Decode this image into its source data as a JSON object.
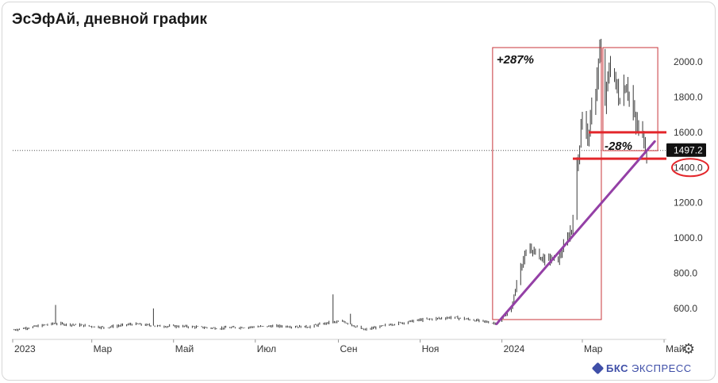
{
  "title": "ЭсЭфАй, дневной график",
  "logo": {
    "brand": "БКС",
    "product": "ЭКСПРЕСС"
  },
  "settings_icon": "gear-icon",
  "chart_data": {
    "type": "candlestick",
    "title": "ЭсЭфАй, дневной график",
    "x_tick_labels": [
      "2023",
      "Мар",
      "Май",
      "Июл",
      "Сен",
      "Ноя",
      "2024",
      "Мар",
      "Май"
    ],
    "y_tick_labels": [
      "600.0",
      "800.0",
      "1000.0",
      "1200.0",
      "1400.0",
      "1600.0",
      "1800.0",
      "2000.0"
    ],
    "y_ticks": [
      600,
      800,
      1000,
      1200,
      1400,
      1600,
      1800,
      2000
    ],
    "ylim": [
      455,
      2090
    ],
    "current_price": 1497.2,
    "current_price_label": "1497.2",
    "circled_level": "1400.0",
    "levels": [
      1600,
      1450
    ],
    "annotations": [
      {
        "text": "+287%",
        "from_date": "2023-12-28",
        "to_date": "2024-03-14"
      },
      {
        "text": "-28%",
        "from_date": "2024-03-14",
        "to_date": "2024-04-18"
      }
    ],
    "trendline": {
      "start": {
        "date": "2023-12-28",
        "value": 512
      },
      "end": {
        "date": "2024-04-24",
        "value": 1548
      }
    },
    "price_path": [
      {
        "date": "2023-01-01",
        "value": 478
      },
      {
        "date": "2023-01-20",
        "value": 500
      },
      {
        "date": "2023-02-01",
        "value": 515
      },
      {
        "date": "2023-02-20",
        "value": 505
      },
      {
        "date": "2023-03-10",
        "value": 492
      },
      {
        "date": "2023-04-01",
        "value": 512
      },
      {
        "date": "2023-04-20",
        "value": 500
      },
      {
        "date": "2023-05-10",
        "value": 498
      },
      {
        "date": "2023-06-01",
        "value": 488
      },
      {
        "date": "2023-06-25",
        "value": 494
      },
      {
        "date": "2023-07-15",
        "value": 500
      },
      {
        "date": "2023-08-10",
        "value": 496
      },
      {
        "date": "2023-08-25",
        "value": 520
      },
      {
        "date": "2023-09-05",
        "value": 525
      },
      {
        "date": "2023-09-20",
        "value": 478
      },
      {
        "date": "2023-10-10",
        "value": 510
      },
      {
        "date": "2023-11-01",
        "value": 535
      },
      {
        "date": "2023-11-25",
        "value": 550
      },
      {
        "date": "2023-12-10",
        "value": 535
      },
      {
        "date": "2023-12-28",
        "value": 515
      },
      {
        "date": "2024-01-08",
        "value": 600
      },
      {
        "date": "2024-01-15",
        "value": 850
      },
      {
        "date": "2024-01-22",
        "value": 940
      },
      {
        "date": "2024-02-01",
        "value": 880
      },
      {
        "date": "2024-02-12",
        "value": 880
      },
      {
        "date": "2024-02-22",
        "value": 1050
      },
      {
        "date": "2024-03-01",
        "value": 1720
      },
      {
        "date": "2024-03-05",
        "value": 1560
      },
      {
        "date": "2024-03-10",
        "value": 1800
      },
      {
        "date": "2024-03-14",
        "value": 2050
      },
      {
        "date": "2024-03-18",
        "value": 1780
      },
      {
        "date": "2024-03-22",
        "value": 2000
      },
      {
        "date": "2024-03-28",
        "value": 1800
      },
      {
        "date": "2024-04-03",
        "value": 1880
      },
      {
        "date": "2024-04-10",
        "value": 1640
      },
      {
        "date": "2024-04-15",
        "value": 1580
      },
      {
        "date": "2024-04-18",
        "value": 1497
      }
    ],
    "spikes": [
      {
        "date": "2023-02-02",
        "value": 620
      },
      {
        "date": "2023-04-16",
        "value": 600
      },
      {
        "date": "2023-08-28",
        "value": 680
      },
      {
        "date": "2023-09-10",
        "value": 570
      }
    ]
  }
}
